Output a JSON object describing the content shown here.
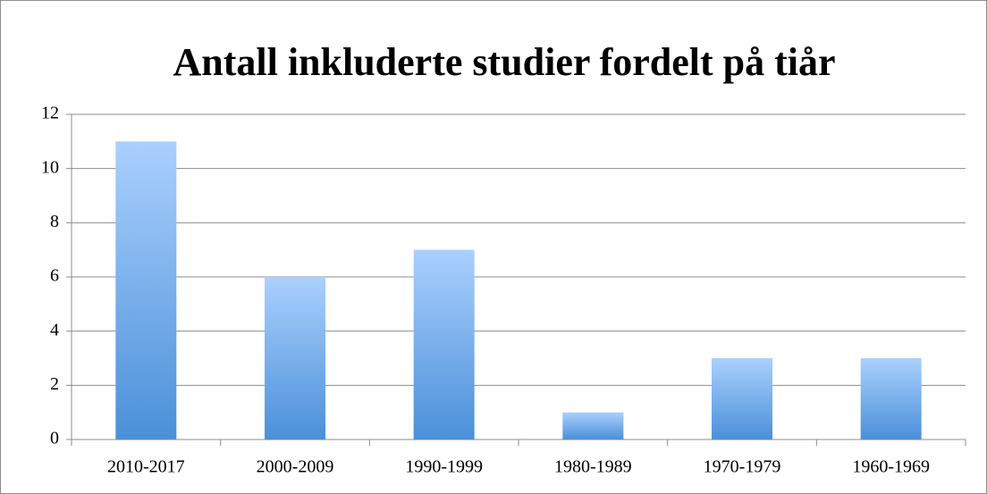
{
  "chart_data": {
    "type": "bar",
    "title": "Antall inkluderte studier fordelt på tiår",
    "categories": [
      "2010-2017",
      "2000-2009",
      "1990-1999",
      "1980-1989",
      "1970-1979",
      "1960-1969"
    ],
    "values": [
      11,
      6,
      7,
      1,
      3,
      3
    ],
    "color": "#4a90d9",
    "ylim": [
      0,
      12
    ],
    "yticks": [
      0,
      2,
      4,
      6,
      8,
      10,
      12
    ],
    "grid": true
  }
}
